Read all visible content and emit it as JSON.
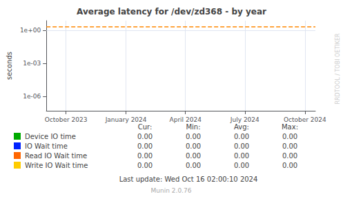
{
  "chart_data": {
    "type": "line",
    "title": "Average latency for /dev/zd368 - by year",
    "ylabel": "seconds",
    "log": "y",
    "grid": true,
    "legend": "bottom",
    "xlim": [
      1693526400,
      1729123200
    ],
    "xticks": [
      {
        "value": 1696118400,
        "label": "October 2023"
      },
      {
        "value": 1704067200,
        "label": "January 2024"
      },
      {
        "value": 1711929600,
        "label": "April 2024"
      },
      {
        "value": 1719792000,
        "label": "July 2024"
      },
      {
        "value": 1727740800,
        "label": "October 2024"
      }
    ],
    "ylim": [
      5e-08,
      8.0
    ],
    "yticks": [
      {
        "value": 1,
        "label": "1e+00"
      },
      {
        "value": 0.001,
        "label": "1e-03"
      },
      {
        "value": 1e-06,
        "label": "1e-06"
      }
    ],
    "hline": {
      "y": 2.2,
      "color": "#ff8800",
      "line_style": "dashed"
    },
    "stat_columns": [
      "Cur:",
      "Min:",
      "Avg:",
      "Max:"
    ],
    "series": [
      {
        "name": "Device IO time",
        "color": "#00aa00",
        "stats": [
          "0.00",
          "0.00",
          "0.00",
          "0.00"
        ]
      },
      {
        "name": "IO Wait time",
        "color": "#0022ff",
        "stats": [
          "0.00",
          "0.00",
          "0.00",
          "0.00"
        ]
      },
      {
        "name": "Read IO Wait time",
        "color": "#ff6600",
        "stats": [
          "0.00",
          "0.00",
          "0.00",
          "0.00"
        ]
      },
      {
        "name": "Write IO Wait time",
        "color": "#ffcc00",
        "stats": [
          "0.00",
          "0.00",
          "0.00",
          "0.00"
        ]
      }
    ],
    "footer": "Last update: Wed Oct 16 02:00:10 2024",
    "version": "Munin 2.0.76",
    "watermark": "RRDTOOL / TOBI OETIKER"
  }
}
